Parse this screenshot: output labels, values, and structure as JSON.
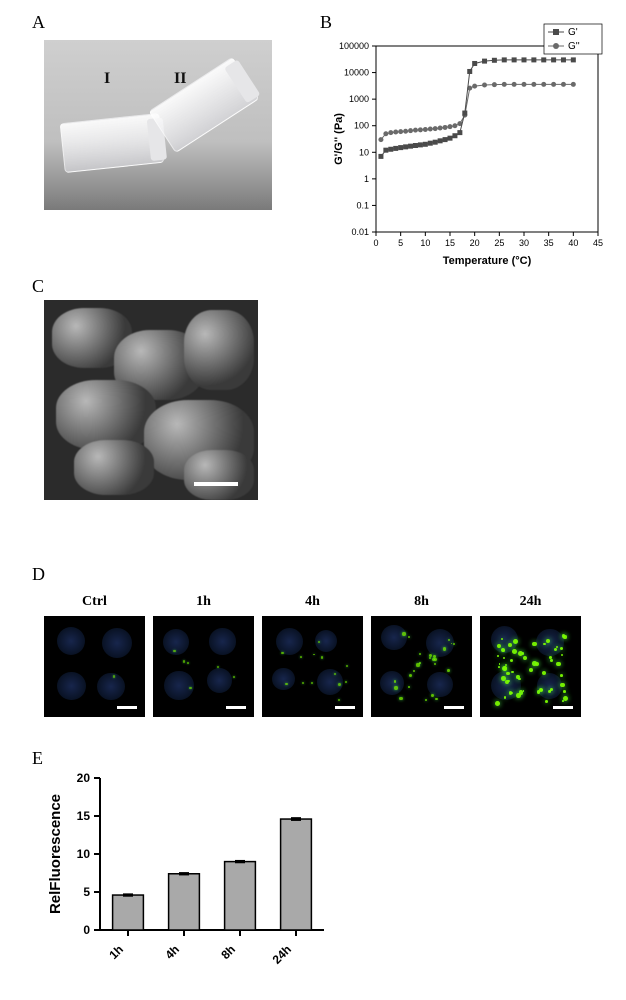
{
  "panelA": {
    "label": "A",
    "vial1_label": "I",
    "vial2_label": "II"
  },
  "panelB": {
    "label": "B",
    "type": "line-scatter",
    "xlabel": "Temperature (°C)",
    "ylabel": "G'/G''  (Pa)",
    "xlim": [
      0,
      45
    ],
    "xtick_step": 5,
    "ylim_log": [
      0.01,
      100000
    ],
    "ytick_powers": [
      -2,
      -1,
      0,
      1,
      2,
      3,
      4,
      5
    ],
    "legend": [
      {
        "label": "G'",
        "marker": "square",
        "color": "#4a4a4a"
      },
      {
        "label": "G''",
        "marker": "circle",
        "color": "#6a6a6a"
      }
    ],
    "series_Gp": {
      "x": [
        1,
        2,
        3,
        4,
        5,
        6,
        7,
        8,
        9,
        10,
        11,
        12,
        13,
        14,
        15,
        16,
        17,
        18,
        19,
        20,
        22,
        24,
        26,
        28,
        30,
        32,
        34,
        36,
        38,
        40
      ],
      "y": [
        7,
        12,
        13,
        14,
        15,
        16,
        17,
        18,
        19,
        20,
        22,
        24,
        27,
        30,
        34,
        42,
        55,
        300,
        11000,
        22000,
        27000,
        29000,
        30000,
        30000,
        30000,
        30000,
        30000,
        30000,
        30000,
        30000
      ]
    },
    "series_Gpp": {
      "x": [
        1,
        2,
        3,
        4,
        5,
        6,
        7,
        8,
        9,
        10,
        11,
        12,
        13,
        14,
        15,
        16,
        17,
        18,
        19,
        20,
        22,
        24,
        26,
        28,
        30,
        32,
        34,
        36,
        38,
        40
      ],
      "y": [
        30,
        50,
        55,
        58,
        60,
        62,
        65,
        68,
        70,
        72,
        75,
        78,
        82,
        86,
        92,
        100,
        120,
        250,
        2600,
        3100,
        3400,
        3500,
        3600,
        3600,
        3600,
        3600,
        3600,
        3600,
        3600,
        3600
      ]
    },
    "axis_color": "#000000",
    "tick_fontsize": 9,
    "label_fontsize": 11,
    "legend_fontsize": 10
  },
  "panelC": {
    "label": "C"
  },
  "panelD": {
    "label": "D",
    "columns": [
      "Ctrl",
      "1h",
      "4h",
      "8h",
      "24h"
    ],
    "intensity": [
      0.02,
      0.08,
      0.18,
      0.35,
      0.85
    ]
  },
  "panelE": {
    "label": "E",
    "type": "bar",
    "ylabel": "RelFluorescence",
    "categories": [
      "1h",
      "4h",
      "8h",
      "24h"
    ],
    "values": [
      4.6,
      7.4,
      9.0,
      14.6
    ],
    "errors": [
      0.12,
      0.12,
      0.12,
      0.15
    ],
    "ylim": [
      0,
      20
    ],
    "ytick_step": 5,
    "bar_color": "#a9a9a9",
    "bar_border": "#000000",
    "axis_color": "#000000",
    "tick_fontsize": 12,
    "label_fontsize": 15,
    "bar_width": 0.55
  }
}
